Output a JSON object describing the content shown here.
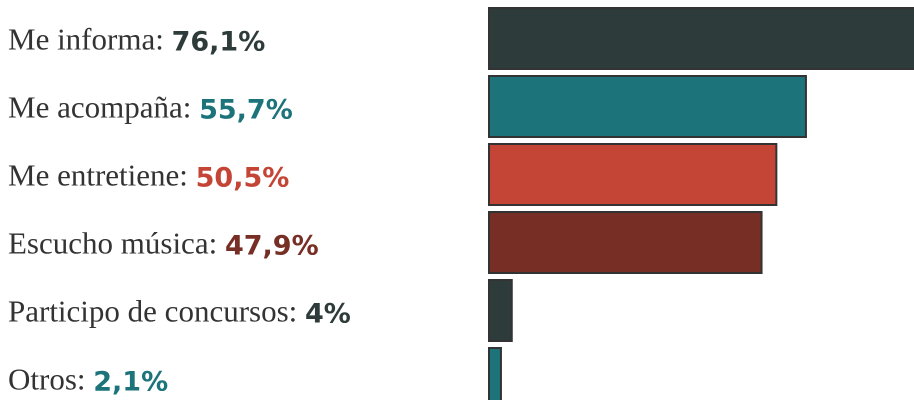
{
  "chart_data": {
    "type": "bar",
    "orientation": "horizontal",
    "categories": [
      "Me informa:",
      "Me acompaña:",
      "Me entretiene:",
      "Escucho música:",
      "Participo de concursos:",
      "Otros:"
    ],
    "values": [
      76.1,
      55.7,
      50.5,
      47.9,
      4,
      2.1
    ],
    "value_labels": [
      "76,1%",
      "55,7%",
      "50,5%",
      "47,9%",
      "4%",
      "2,1%"
    ],
    "colors": [
      "#2d3c3a",
      "#1c747a",
      "#c44536",
      "#772e25",
      "#2d3c3a",
      "#1c747a"
    ]
  }
}
